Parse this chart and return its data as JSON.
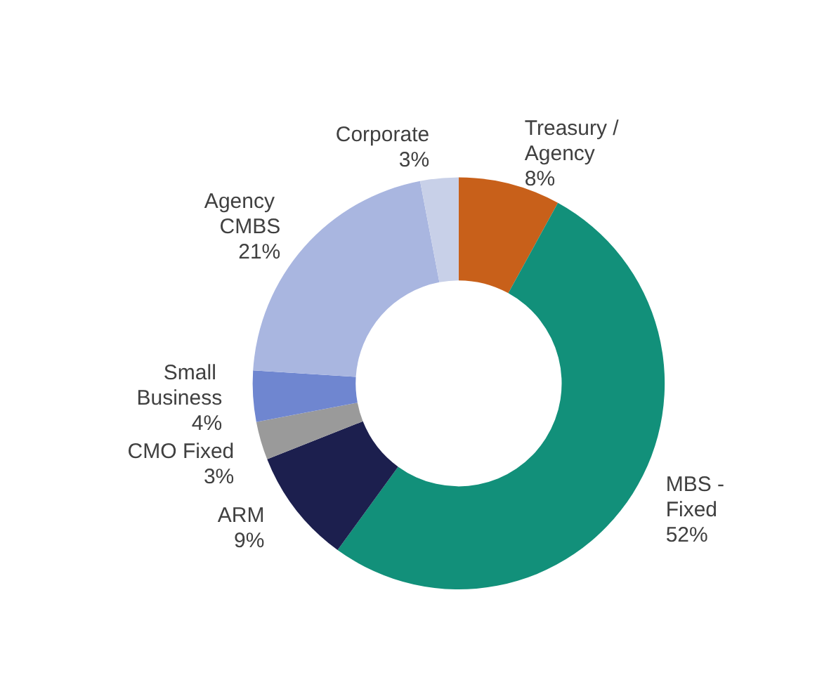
{
  "chart_data": {
    "type": "donut",
    "categories": [
      "Treasury / Agency",
      "MBS - Fixed",
      "ARM",
      "CMO Fixed",
      "Small Business",
      "Agency CMBS",
      "Corporate"
    ],
    "values": [
      8,
      52,
      9,
      3,
      4,
      21,
      3
    ],
    "value_labels": [
      "8%",
      "52%",
      "9%",
      "3%",
      "4%",
      "21%",
      "3%"
    ],
    "colors": [
      "#c8601a",
      "#12907a",
      "#1c1f4e",
      "#9a9a9a",
      "#6f86d0",
      "#a9b6e0",
      "#c8d0e8"
    ],
    "legend": false
  }
}
